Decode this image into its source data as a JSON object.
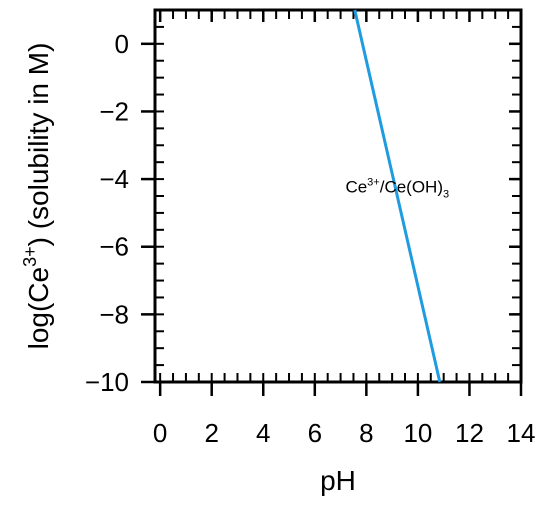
{
  "chart_data": {
    "type": "line",
    "xlabel": "pH",
    "ylabel_prefix": "log(Ce",
    "ylabel_sup": "3+",
    "ylabel_suffix": ") (solubility in M)",
    "xlim": [
      -0.2,
      14
    ],
    "ylim": [
      -10,
      1
    ],
    "x_ticks": [
      0,
      2,
      4,
      6,
      8,
      10,
      12,
      14
    ],
    "x_tick_labels": [
      "0",
      "2",
      "4",
      "6",
      "8",
      "10",
      "12",
      "14"
    ],
    "y_ticks": [
      0,
      -2,
      -4,
      -6,
      -8,
      -10
    ],
    "y_tick_labels": [
      "0",
      "−2",
      "−4",
      "−6",
      "−8",
      "−10"
    ],
    "series": [
      {
        "color": "#1f9be0",
        "x": [
          7.55,
          10.85
        ],
        "y": [
          1,
          -10
        ]
      }
    ],
    "annotation": {
      "text_a": "Ce",
      "sup": "3+",
      "text_b": "/Ce(OH)",
      "sub": "3",
      "x": 9.2,
      "y": -4.4
    },
    "grid": false
  }
}
